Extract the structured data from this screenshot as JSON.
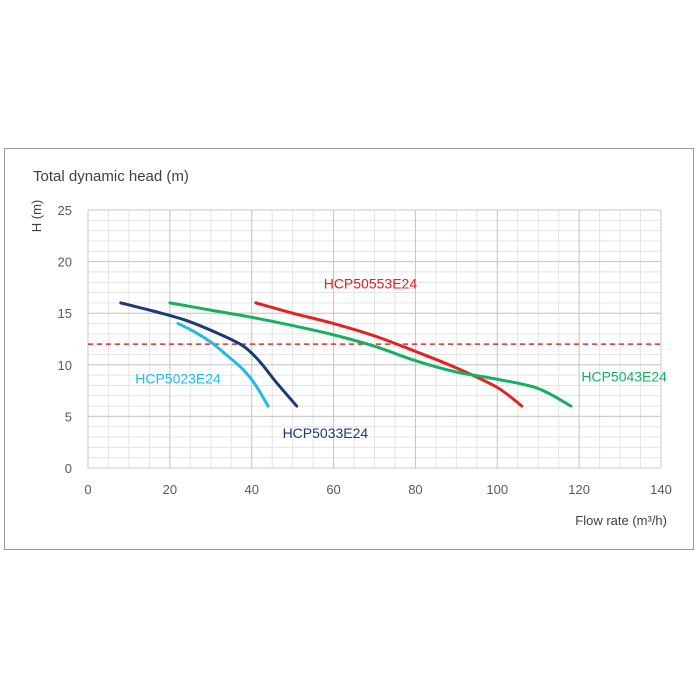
{
  "chart_data": {
    "type": "line",
    "title": "Total dynamic head (m)",
    "ylabel": "H (m)",
    "xlabel": "Flow rate (m³/h)",
    "xlim": [
      0,
      140
    ],
    "ylim": [
      0,
      25
    ],
    "xticks": [
      0,
      20,
      40,
      60,
      80,
      100,
      120,
      140
    ],
    "yticks": [
      0,
      5,
      10,
      15,
      20,
      25
    ],
    "grid": true,
    "reference_line": {
      "y": 12,
      "color": "#e03030",
      "style": "dashed"
    },
    "series": [
      {
        "name": "HCP50553E24",
        "color": "#e32222",
        "points": [
          [
            41,
            16
          ],
          [
            50,
            15
          ],
          [
            60,
            14
          ],
          [
            70,
            12.8
          ],
          [
            80,
            11.3
          ],
          [
            90,
            9.7
          ],
          [
            100,
            7.8
          ],
          [
            106,
            6
          ]
        ]
      },
      {
        "name": "HCP5043E24",
        "color": "#16b060",
        "points": [
          [
            20,
            16
          ],
          [
            30,
            15.3
          ],
          [
            40,
            14.6
          ],
          [
            50,
            13.8
          ],
          [
            60,
            12.9
          ],
          [
            70,
            11.8
          ],
          [
            80,
            10.4
          ],
          [
            90,
            9.3
          ],
          [
            100,
            8.6
          ],
          [
            110,
            7.7
          ],
          [
            118,
            6
          ]
        ]
      },
      {
        "name": "HCP5033E24",
        "color": "#1a3a78",
        "points": [
          [
            8,
            16
          ],
          [
            16,
            15.2
          ],
          [
            24,
            14.3
          ],
          [
            32,
            13
          ],
          [
            38,
            11.8
          ],
          [
            42,
            10.3
          ],
          [
            46,
            8.3
          ],
          [
            51,
            6
          ]
        ]
      },
      {
        "name": "HCP5023E24",
        "color": "#22b8e8",
        "points": [
          [
            22,
            14
          ],
          [
            26,
            13.2
          ],
          [
            30,
            12.2
          ],
          [
            34,
            10.9
          ],
          [
            38,
            9.5
          ],
          [
            41,
            8
          ],
          [
            44,
            6
          ]
        ]
      }
    ],
    "series_labels": [
      {
        "name": "HCP50553E24",
        "x": 69,
        "y": 17.4,
        "anchor": "middle"
      },
      {
        "name": "HCP5043E24",
        "x": 131,
        "y": 8.4,
        "anchor": "middle"
      },
      {
        "name": "HCP5033E24",
        "x": 58,
        "y": 2.9,
        "anchor": "middle"
      },
      {
        "name": "HCP5023E24",
        "x": 22,
        "y": 8.2,
        "anchor": "middle"
      }
    ]
  }
}
